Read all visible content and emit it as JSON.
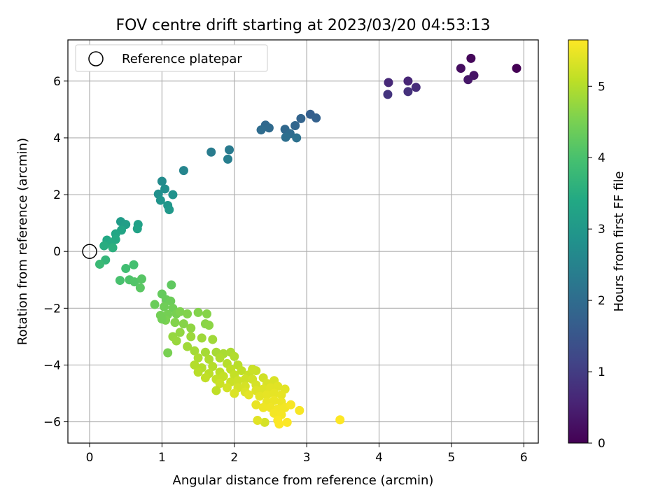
{
  "chart_data": {
    "type": "scatter",
    "title": "FOV centre drift starting at 2023/03/20 04:53:13",
    "xlabel": "Angular distance from reference (arcmin)",
    "ylabel": "Rotation from reference (arcmin)",
    "xlim": [
      -0.3,
      6.2
    ],
    "ylim": [
      -6.75,
      7.45
    ],
    "x_ticks": [
      0,
      1,
      2,
      3,
      4,
      5,
      6
    ],
    "y_ticks": [
      -6,
      -4,
      -2,
      0,
      2,
      4,
      6
    ],
    "grid": true,
    "legend": {
      "position": "upper-left",
      "entries": [
        "Reference platepar"
      ]
    },
    "reference_point": {
      "x": 0,
      "y": 0
    },
    "colorbar": {
      "label": "Hours from first FF file",
      "colormap": "viridis",
      "range": [
        0,
        5.65
      ],
      "ticks": [
        0,
        1,
        2,
        3,
        4,
        5
      ]
    },
    "points": [
      {
        "x": 5.9,
        "y": 6.45,
        "c": 0.0
      },
      {
        "x": 5.27,
        "y": 6.8,
        "c": 0.1
      },
      {
        "x": 5.13,
        "y": 6.45,
        "c": 0.2
      },
      {
        "x": 5.31,
        "y": 6.2,
        "c": 0.3
      },
      {
        "x": 5.23,
        "y": 6.05,
        "c": 0.35
      },
      {
        "x": 4.4,
        "y": 6.0,
        "c": 0.6
      },
      {
        "x": 4.13,
        "y": 5.95,
        "c": 0.65
      },
      {
        "x": 4.51,
        "y": 5.78,
        "c": 0.7
      },
      {
        "x": 4.4,
        "y": 5.63,
        "c": 0.8
      },
      {
        "x": 4.12,
        "y": 5.53,
        "c": 0.85
      },
      {
        "x": 3.05,
        "y": 4.83,
        "c": 1.7
      },
      {
        "x": 3.13,
        "y": 4.7,
        "c": 1.75
      },
      {
        "x": 2.92,
        "y": 4.68,
        "c": 1.8
      },
      {
        "x": 2.84,
        "y": 4.43,
        "c": 1.85
      },
      {
        "x": 2.43,
        "y": 4.45,
        "c": 1.9
      },
      {
        "x": 2.48,
        "y": 4.35,
        "c": 1.95
      },
      {
        "x": 2.37,
        "y": 4.28,
        "c": 2.0
      },
      {
        "x": 2.7,
        "y": 4.3,
        "c": 1.9
      },
      {
        "x": 2.77,
        "y": 4.15,
        "c": 2.0
      },
      {
        "x": 2.71,
        "y": 4.02,
        "c": 2.05
      },
      {
        "x": 2.86,
        "y": 4.0,
        "c": 2.1
      },
      {
        "x": 1.93,
        "y": 3.58,
        "c": 2.3
      },
      {
        "x": 1.68,
        "y": 3.5,
        "c": 2.35
      },
      {
        "x": 1.91,
        "y": 3.25,
        "c": 2.4
      },
      {
        "x": 1.3,
        "y": 2.85,
        "c": 2.55
      },
      {
        "x": 1.0,
        "y": 2.47,
        "c": 2.7
      },
      {
        "x": 1.04,
        "y": 2.2,
        "c": 2.75
      },
      {
        "x": 0.95,
        "y": 2.02,
        "c": 2.8
      },
      {
        "x": 1.15,
        "y": 2.0,
        "c": 2.85
      },
      {
        "x": 0.98,
        "y": 1.8,
        "c": 2.9
      },
      {
        "x": 1.08,
        "y": 1.62,
        "c": 2.95
      },
      {
        "x": 1.1,
        "y": 1.47,
        "c": 3.0
      },
      {
        "x": 0.43,
        "y": 1.05,
        "c": 3.1
      },
      {
        "x": 0.5,
        "y": 0.95,
        "c": 3.15
      },
      {
        "x": 0.67,
        "y": 0.95,
        "c": 3.2
      },
      {
        "x": 0.66,
        "y": 0.8,
        "c": 3.25
      },
      {
        "x": 0.44,
        "y": 0.75,
        "c": 3.3
      },
      {
        "x": 0.36,
        "y": 0.62,
        "c": 3.35
      },
      {
        "x": 0.24,
        "y": 0.4,
        "c": 3.4
      },
      {
        "x": 0.36,
        "y": 0.42,
        "c": 3.42
      },
      {
        "x": 0.3,
        "y": 0.3,
        "c": 3.45
      },
      {
        "x": 0.2,
        "y": 0.2,
        "c": 3.5
      },
      {
        "x": 0.32,
        "y": 0.13,
        "c": 3.55
      },
      {
        "x": 0.22,
        "y": -0.3,
        "c": 3.7
      },
      {
        "x": 0.14,
        "y": -0.45,
        "c": 3.8
      },
      {
        "x": 0.5,
        "y": -0.6,
        "c": 3.9
      },
      {
        "x": 0.61,
        "y": -0.47,
        "c": 3.95
      },
      {
        "x": 0.42,
        "y": -1.02,
        "c": 4.0
      },
      {
        "x": 0.55,
        "y": -1.0,
        "c": 4.05
      },
      {
        "x": 0.62,
        "y": -1.07,
        "c": 4.1
      },
      {
        "x": 0.72,
        "y": -0.97,
        "c": 4.15
      },
      {
        "x": 0.7,
        "y": -1.28,
        "c": 4.2
      },
      {
        "x": 1.13,
        "y": -1.18,
        "c": 4.25
      },
      {
        "x": 1.0,
        "y": -1.5,
        "c": 4.3
      },
      {
        "x": 1.06,
        "y": -1.7,
        "c": 4.32
      },
      {
        "x": 0.9,
        "y": -1.87,
        "c": 4.35
      },
      {
        "x": 1.12,
        "y": -1.75,
        "c": 4.37
      },
      {
        "x": 1.03,
        "y": -1.95,
        "c": 4.4
      },
      {
        "x": 1.15,
        "y": -2.0,
        "c": 4.42
      },
      {
        "x": 0.98,
        "y": -2.25,
        "c": 4.45
      },
      {
        "x": 1.08,
        "y": -2.22,
        "c": 4.47
      },
      {
        "x": 1.2,
        "y": -2.2,
        "c": 4.5
      },
      {
        "x": 1.05,
        "y": -2.42,
        "c": 4.52
      },
      {
        "x": 1.25,
        "y": -2.12,
        "c": 4.55
      },
      {
        "x": 1.35,
        "y": -2.2,
        "c": 4.58
      },
      {
        "x": 1.5,
        "y": -2.15,
        "c": 4.6
      },
      {
        "x": 1.62,
        "y": -2.2,
        "c": 4.62
      },
      {
        "x": 1.0,
        "y": -2.38,
        "c": 4.45
      },
      {
        "x": 1.18,
        "y": -2.5,
        "c": 4.6
      },
      {
        "x": 1.3,
        "y": -2.55,
        "c": 4.62
      },
      {
        "x": 1.6,
        "y": -2.55,
        "c": 4.65
      },
      {
        "x": 1.65,
        "y": -2.6,
        "c": 4.67
      },
      {
        "x": 1.4,
        "y": -2.7,
        "c": 4.7
      },
      {
        "x": 1.25,
        "y": -2.85,
        "c": 4.72
      },
      {
        "x": 1.15,
        "y": -3.0,
        "c": 4.75
      },
      {
        "x": 1.2,
        "y": -3.15,
        "c": 4.77
      },
      {
        "x": 1.4,
        "y": -3.0,
        "c": 4.8
      },
      {
        "x": 1.55,
        "y": -3.05,
        "c": 4.82
      },
      {
        "x": 1.7,
        "y": -3.1,
        "c": 4.84
      },
      {
        "x": 1.35,
        "y": -3.35,
        "c": 4.85
      },
      {
        "x": 1.08,
        "y": -3.57,
        "c": 4.5
      },
      {
        "x": 1.45,
        "y": -3.5,
        "c": 4.87
      },
      {
        "x": 1.6,
        "y": -3.55,
        "c": 4.88
      },
      {
        "x": 1.75,
        "y": -3.55,
        "c": 4.9
      },
      {
        "x": 1.85,
        "y": -3.6,
        "c": 4.92
      },
      {
        "x": 1.95,
        "y": -3.55,
        "c": 4.93
      },
      {
        "x": 1.5,
        "y": -3.75,
        "c": 4.95
      },
      {
        "x": 1.65,
        "y": -3.8,
        "c": 4.96
      },
      {
        "x": 1.8,
        "y": -3.75,
        "c": 4.97
      },
      {
        "x": 2.0,
        "y": -3.7,
        "c": 4.98
      },
      {
        "x": 1.45,
        "y": -4.0,
        "c": 5.0
      },
      {
        "x": 1.55,
        "y": -4.1,
        "c": 5.0
      },
      {
        "x": 1.7,
        "y": -4.05,
        "c": 5.02
      },
      {
        "x": 1.9,
        "y": -3.95,
        "c": 5.03
      },
      {
        "x": 2.05,
        "y": -4.0,
        "c": 5.05
      },
      {
        "x": 1.5,
        "y": -4.25,
        "c": 5.05
      },
      {
        "x": 1.65,
        "y": -4.3,
        "c": 5.07
      },
      {
        "x": 1.8,
        "y": -4.25,
        "c": 5.08
      },
      {
        "x": 1.95,
        "y": -4.15,
        "c": 5.1
      },
      {
        "x": 2.1,
        "y": -4.2,
        "c": 5.1
      },
      {
        "x": 1.6,
        "y": -4.45,
        "c": 5.12
      },
      {
        "x": 1.75,
        "y": -4.5,
        "c": 5.13
      },
      {
        "x": 1.85,
        "y": -4.4,
        "c": 5.15
      },
      {
        "x": 2.0,
        "y": -4.35,
        "c": 5.15
      },
      {
        "x": 2.2,
        "y": -4.35,
        "c": 5.17
      },
      {
        "x": 2.3,
        "y": -4.2,
        "c": 5.18
      },
      {
        "x": 1.8,
        "y": -4.65,
        "c": 5.2
      },
      {
        "x": 1.95,
        "y": -4.6,
        "c": 5.2
      },
      {
        "x": 2.05,
        "y": -4.55,
        "c": 5.22
      },
      {
        "x": 2.15,
        "y": -4.5,
        "c": 5.23
      },
      {
        "x": 2.25,
        "y": -4.5,
        "c": 5.25
      },
      {
        "x": 2.4,
        "y": -4.45,
        "c": 5.25
      },
      {
        "x": 1.75,
        "y": -4.9,
        "c": 5.1
      },
      {
        "x": 1.9,
        "y": -4.8,
        "c": 5.27
      },
      {
        "x": 2.05,
        "y": -4.8,
        "c": 5.28
      },
      {
        "x": 2.15,
        "y": -4.75,
        "c": 5.3
      },
      {
        "x": 2.3,
        "y": -4.7,
        "c": 5.3
      },
      {
        "x": 2.45,
        "y": -4.65,
        "c": 5.32
      },
      {
        "x": 2.55,
        "y": -4.55,
        "c": 5.33
      },
      {
        "x": 2.0,
        "y": -5.0,
        "c": 5.35
      },
      {
        "x": 2.15,
        "y": -4.95,
        "c": 5.35
      },
      {
        "x": 2.3,
        "y": -4.9,
        "c": 5.37
      },
      {
        "x": 2.4,
        "y": -4.85,
        "c": 5.38
      },
      {
        "x": 2.5,
        "y": -4.8,
        "c": 5.4
      },
      {
        "x": 2.6,
        "y": -4.75,
        "c": 5.4
      },
      {
        "x": 2.7,
        "y": -4.85,
        "c": 5.42
      },
      {
        "x": 2.2,
        "y": -5.05,
        "c": 5.42
      },
      {
        "x": 2.35,
        "y": -5.1,
        "c": 5.43
      },
      {
        "x": 2.45,
        "y": -5.05,
        "c": 5.45
      },
      {
        "x": 2.55,
        "y": -5.0,
        "c": 5.45
      },
      {
        "x": 2.65,
        "y": -5.05,
        "c": 5.46
      },
      {
        "x": 2.3,
        "y": -5.4,
        "c": 5.47
      },
      {
        "x": 2.45,
        "y": -5.3,
        "c": 5.48
      },
      {
        "x": 2.55,
        "y": -5.25,
        "c": 5.5
      },
      {
        "x": 2.65,
        "y": -5.3,
        "c": 5.5
      },
      {
        "x": 2.4,
        "y": -5.5,
        "c": 5.52
      },
      {
        "x": 2.5,
        "y": -5.5,
        "c": 5.53
      },
      {
        "x": 2.6,
        "y": -5.55,
        "c": 5.55
      },
      {
        "x": 2.7,
        "y": -5.5,
        "c": 5.55
      },
      {
        "x": 2.55,
        "y": -5.7,
        "c": 5.57
      },
      {
        "x": 2.65,
        "y": -5.75,
        "c": 5.58
      },
      {
        "x": 2.9,
        "y": -5.6,
        "c": 5.6
      },
      {
        "x": 2.78,
        "y": -5.4,
        "c": 5.6
      },
      {
        "x": 2.6,
        "y": -5.95,
        "c": 5.62
      },
      {
        "x": 2.73,
        "y": -6.02,
        "c": 5.63
      },
      {
        "x": 2.62,
        "y": -6.08,
        "c": 5.64
      },
      {
        "x": 2.42,
        "y": -6.02,
        "c": 5.3
      },
      {
        "x": 2.32,
        "y": -5.95,
        "c": 5.4
      },
      {
        "x": 3.46,
        "y": -5.93,
        "c": 5.65
      },
      {
        "x": 2.25,
        "y": -4.15,
        "c": 5.2
      }
    ]
  }
}
